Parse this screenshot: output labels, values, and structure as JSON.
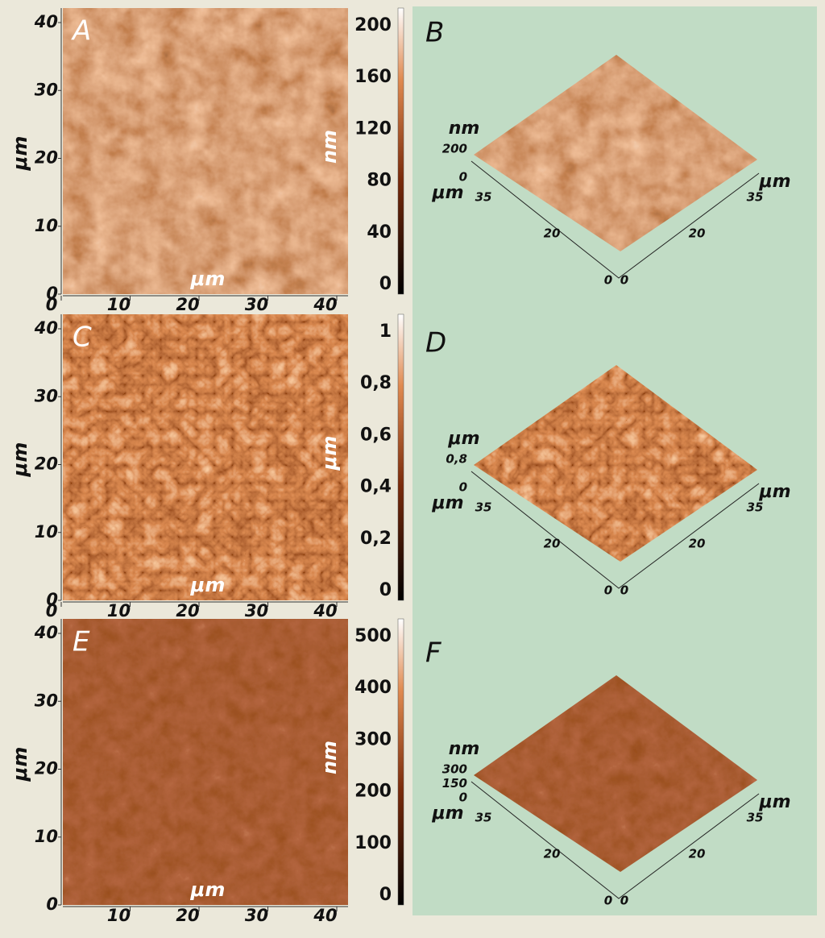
{
  "rows": [
    {
      "map": {
        "label": "A",
        "y_axis_label": "μm",
        "y_ticks": [
          "0",
          "10",
          "20",
          "30",
          "40"
        ],
        "x_ticks": [
          "0",
          "10",
          "20",
          "30",
          "40"
        ],
        "x_axis_label": "μm",
        "colorbar_label": "nm",
        "colorbar_ticks": [
          "0",
          "40",
          "80",
          "120",
          "160",
          "200"
        ]
      },
      "surface": {
        "label": "B",
        "z_axis_label": "nm",
        "z_ticks": [
          "200",
          "0"
        ],
        "left_axis_label": "μm",
        "left_ticks": [
          "35",
          "20",
          "0"
        ],
        "right_axis_label": "μm",
        "right_ticks": [
          "0",
          "20",
          "35"
        ]
      }
    },
    {
      "map": {
        "label": "C",
        "y_axis_label": "μm",
        "y_ticks": [
          "0",
          "10",
          "20",
          "30",
          "40"
        ],
        "x_ticks": [
          "0",
          "10",
          "20",
          "30",
          "40"
        ],
        "x_axis_label": "μm",
        "colorbar_label": "μm",
        "colorbar_ticks": [
          "0",
          "0,2",
          "0,4",
          "0,6",
          "0,8",
          "1"
        ]
      },
      "surface": {
        "label": "D",
        "z_axis_label": "μm",
        "z_ticks": [
          "0,8",
          "0"
        ],
        "left_axis_label": "μm",
        "left_ticks": [
          "35",
          "20",
          "0"
        ],
        "right_axis_label": "μm",
        "right_ticks": [
          "0",
          "20",
          "35"
        ]
      }
    },
    {
      "map": {
        "label": "E",
        "y_axis_label": "μm",
        "y_ticks": [
          "0",
          "10",
          "20",
          "30",
          "40"
        ],
        "x_ticks": [
          "10",
          "20",
          "30",
          "40"
        ],
        "x_axis_label": "μm",
        "colorbar_label": "nm",
        "colorbar_ticks": [
          "0",
          "100",
          "200",
          "300",
          "400",
          "500"
        ]
      },
      "surface": {
        "label": "F",
        "z_axis_label": "nm",
        "z_ticks": [
          "300",
          "150",
          "0"
        ],
        "left_axis_label": "μm",
        "left_ticks": [
          "35",
          "20",
          "0"
        ],
        "right_axis_label": "μm",
        "right_ticks": [
          "0",
          "20",
          "35"
        ]
      }
    }
  ]
}
